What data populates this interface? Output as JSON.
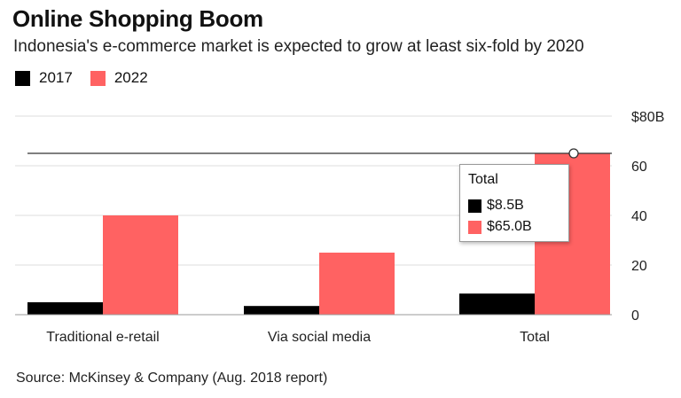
{
  "header": {
    "title": "Online Shopping Boom",
    "subtitle": "Indonesia's e-commerce market is expected to grow at least six-fold by 2020"
  },
  "legend": [
    {
      "label": "2017",
      "color": "#000000"
    },
    {
      "label": "2022",
      "color": "#ff6262"
    }
  ],
  "chart_data": {
    "type": "bar",
    "title": "Online Shopping Boom",
    "subtitle": "Indonesia's e-commerce market is expected to grow at least six-fold by 2020",
    "categories": [
      "Traditional e-retail",
      "Via social media",
      "Total"
    ],
    "series": [
      {
        "name": "2017",
        "color": "#000000",
        "values": [
          5,
          3.5,
          8.5
        ]
      },
      {
        "name": "2022",
        "color": "#ff6262",
        "values": [
          40,
          25,
          65.0
        ]
      }
    ],
    "ylim": [
      0,
      80
    ],
    "yticks": [
      0,
      20,
      40,
      60,
      80
    ],
    "ytick_labels": [
      "0",
      "20",
      "40",
      "60",
      "$80B"
    ],
    "ylabel": "",
    "xlabel": "",
    "grid": true,
    "reference_line": 65.0,
    "legend_position": "top-left"
  },
  "tooltip": {
    "title": "Total",
    "rows": [
      {
        "label": "$8.5B",
        "color": "#000000"
      },
      {
        "label": "$65.0B",
        "color": "#ff6262"
      }
    ]
  },
  "footer": {
    "source": "Source: McKinsey & Company (Aug. 2018 report)"
  }
}
